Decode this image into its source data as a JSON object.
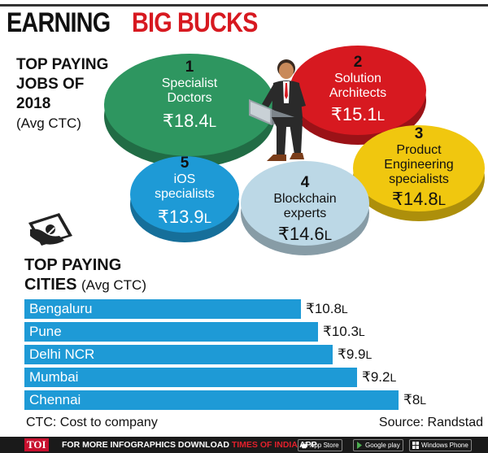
{
  "header": {
    "title_part1": "EARNING",
    "title_part2": "BIG BUCKS"
  },
  "jobs_section": {
    "heading_line1": "TOP PAYING",
    "heading_line2": "JOBS OF",
    "heading_line3": "2018",
    "heading_sub": "(Avg CTC)"
  },
  "cities_section": {
    "heading_line1": "TOP PAYING",
    "heading_line2": "CITIES",
    "heading_sub": "(Avg CTC)"
  },
  "chart_data": [
    {
      "type": "bubble",
      "title": "TOP PAYING JOBS OF 2018 (Avg CTC)",
      "currency": "₹",
      "unit": "L",
      "items": [
        {
          "rank": "1",
          "name_lines": [
            "Specialist",
            "Doctors"
          ],
          "value": 18.4,
          "label": "₹18.4",
          "color": "#2e9660",
          "rank_color": "#111111"
        },
        {
          "rank": "2",
          "name_lines": [
            "Solution",
            "Architects"
          ],
          "value": 15.1,
          "label": "₹15.1",
          "color": "#d71920",
          "rank_color": "#111111"
        },
        {
          "rank": "3",
          "name_lines": [
            "Product",
            "Engineering",
            "specialists"
          ],
          "value": 14.8,
          "label": "₹14.8",
          "color": "#f0c70f",
          "rank_color": "#111111"
        },
        {
          "rank": "4",
          "name_lines": [
            "Blockchain",
            "experts"
          ],
          "value": 14.6,
          "label": "₹14.6",
          "color": "#bcd8e6",
          "rank_color": "#111111"
        },
        {
          "rank": "5",
          "name_lines": [
            "iOS",
            "specialists"
          ],
          "value": 13.9,
          "label": "₹13.9",
          "color": "#1e9ad6",
          "rank_color": "#111111"
        }
      ]
    },
    {
      "type": "bar",
      "orientation": "horizontal",
      "title": "TOP PAYING CITIES (Avg CTC)",
      "categories": [
        "Bengaluru",
        "Pune",
        "Delhi NCR",
        "Mumbai",
        "Chennai"
      ],
      "values": [
        10.8,
        10.3,
        9.9,
        9.2,
        8
      ],
      "value_labels": [
        "₹10.8",
        "₹10.3",
        "₹9.9",
        "₹9.2",
        "₹8"
      ],
      "unit": "L",
      "bar_color": "#1e9ad6"
    }
  ],
  "notes": {
    "ctc": "CTC: Cost to company",
    "source": "Source: Randstad"
  },
  "footer": {
    "brand": "TOI",
    "text_white": "FOR MORE INFOGRAPHICS DOWNLOAD",
    "text_red": "TIMES OF INDIA",
    "text_app": "APP",
    "badges": [
      {
        "icon": "apple-icon",
        "label": "App Store"
      },
      {
        "icon": "play-icon",
        "label": "Google play"
      },
      {
        "icon": "windows-icon",
        "label": "Windows Phone"
      }
    ]
  }
}
